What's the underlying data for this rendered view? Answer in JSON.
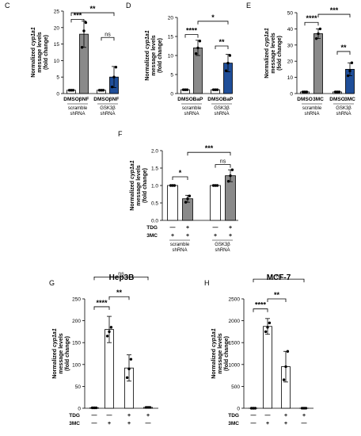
{
  "colors": {
    "open": "#ffffff",
    "gray": "#8a8a8a",
    "blue": "#1f4e99",
    "stroke": "#000000"
  },
  "chart_data": [
    {
      "panel": "C",
      "type": "bar",
      "title": "",
      "ylabel": [
        "Normalized cyp1a1",
        "message levels",
        "(fold change)"
      ],
      "yticks": [
        "0",
        "5",
        "10",
        "15",
        "20",
        "25"
      ],
      "ylim": [
        0,
        25
      ],
      "categories": [
        "DMSO",
        "βNF",
        "DMSO",
        "βNF"
      ],
      "groups": [
        "scramble shRNA",
        "GSK3β shRNA"
      ],
      "values": [
        1,
        18,
        1,
        5
      ],
      "errors": [
        0.1,
        4,
        0.1,
        3.2
      ],
      "points": [
        [
          1,
          1,
          1
        ],
        [
          14,
          19,
          21.5
        ],
        [
          1,
          1,
          1
        ],
        [
          2,
          5,
          8
        ]
      ],
      "fills": [
        "open",
        "gray",
        "open",
        "blue"
      ],
      "brackets": [
        {
          "from": 0,
          "to": 1,
          "y": 22.5,
          "label": "***"
        },
        {
          "from": 0,
          "to": 3,
          "y": 24.5,
          "label": "**"
        },
        {
          "from": 2,
          "to": 3,
          "y": 17,
          "label": "ns"
        }
      ]
    },
    {
      "panel": "D",
      "type": "bar",
      "title": "",
      "ylabel": [
        "Normalized cyp1a1",
        "message levels",
        "(fold change)"
      ],
      "yticks": [
        "0",
        "5",
        "10",
        "15",
        "20"
      ],
      "ylim": [
        0,
        20
      ],
      "categories": [
        "DMSO",
        "BaP",
        "DMSO",
        "BaP"
      ],
      "groups": [
        "scramble shRNA",
        "GSK3β shRNA"
      ],
      "values": [
        1,
        12,
        1,
        8
      ],
      "errors": [
        0.1,
        2,
        0.1,
        2.3
      ],
      "points": [
        [
          1,
          1,
          1
        ],
        [
          10.5,
          12,
          13.8
        ],
        [
          1,
          1,
          1
        ],
        [
          6,
          8,
          10
        ]
      ],
      "fills": [
        "open",
        "gray",
        "open",
        "blue"
      ],
      "brackets": [
        {
          "from": 0,
          "to": 1,
          "y": 15.5,
          "label": "****"
        },
        {
          "from": 1,
          "to": 3,
          "y": 19,
          "label": "*"
        },
        {
          "from": 2,
          "to": 3,
          "y": 12.5,
          "label": "**"
        }
      ]
    },
    {
      "panel": "E",
      "type": "bar",
      "title": "",
      "ylabel": [
        "Normalized cyp1a1",
        "message levels",
        "(fold change)"
      ],
      "yticks": [
        "0",
        "10",
        "20",
        "30",
        "40",
        "50"
      ],
      "ylim": [
        0,
        50
      ],
      "categories": [
        "DMSO",
        "3MC",
        "DMSO",
        "3MC"
      ],
      "groups": [
        "scramble shRNA",
        "GSK3β shRNA"
      ],
      "values": [
        1,
        37,
        1,
        15
      ],
      "errors": [
        0.2,
        3,
        0.2,
        4
      ],
      "points": [
        [
          1,
          1,
          1
        ],
        [
          34,
          37,
          40
        ],
        [
          1,
          1,
          1
        ],
        [
          11,
          14,
          19
        ]
      ],
      "fills": [
        "open",
        "gray",
        "open",
        "blue"
      ],
      "brackets": [
        {
          "from": 0,
          "to": 1,
          "y": 44,
          "label": "****"
        },
        {
          "from": 1,
          "to": 3,
          "y": 49,
          "label": "***"
        },
        {
          "from": 2,
          "to": 3,
          "y": 26,
          "label": "**"
        }
      ]
    },
    {
      "panel": "F",
      "type": "bar",
      "title": "",
      "ylabel": [
        "Normalized cyp1a1",
        "message levels",
        "(fold change)"
      ],
      "yticks": [
        "0.0",
        "0.5",
        "1.0",
        "1.5",
        "2.0"
      ],
      "ylim": [
        0,
        2
      ],
      "categories": [
        "",
        "",
        "",
        ""
      ],
      "groups": [
        "scramble shRNA",
        "GSK3β shRNA"
      ],
      "rows": [
        {
          "label": "TDG",
          "marks": [
            "—",
            "+",
            "—",
            "+"
          ]
        },
        {
          "label": "3MC",
          "marks": [
            "+",
            "+",
            "+",
            "+"
          ]
        }
      ],
      "values": [
        1,
        0.62,
        1,
        1.28
      ],
      "errors": [
        0.01,
        0.1,
        0.01,
        0.17
      ],
      "points": [
        [
          1,
          1,
          1
        ],
        [
          0.52,
          0.62,
          0.7
        ],
        [
          1,
          1,
          1
        ],
        [
          1.12,
          1.28,
          1.45
        ]
      ],
      "fills": [
        "open",
        "gray",
        "open",
        "gray"
      ],
      "brackets": [
        {
          "from": 0,
          "to": 1,
          "y": 1.25,
          "label": "*"
        },
        {
          "from": 1,
          "to": 3,
          "y": 1.95,
          "label": "***"
        },
        {
          "from": 2,
          "to": 3,
          "y": 1.6,
          "label": "ns"
        }
      ]
    },
    {
      "panel": "G",
      "type": "bar",
      "title": "Hep3B",
      "ylabel": [
        "Normalized cyp1a1",
        "message levels",
        "(fold change)"
      ],
      "yticks": [
        "0",
        "50",
        "100",
        "150",
        "200",
        "250"
      ],
      "ylim": [
        0,
        250
      ],
      "categories": [
        "",
        "",
        "",
        ""
      ],
      "rows": [
        {
          "label": "TDG",
          "marks": [
            "—",
            "—",
            "+",
            "+"
          ]
        },
        {
          "label": "3MC",
          "marks": [
            "—",
            "+",
            "+",
            "—"
          ]
        }
      ],
      "values": [
        1,
        180,
        92,
        2
      ],
      "errors": [
        0.5,
        30,
        30,
        0.5
      ],
      "points": [
        [
          1,
          1,
          1
        ],
        [
          165,
          175,
          185
        ],
        [
          70,
          90,
          112
        ],
        [
          2,
          2,
          2
        ]
      ],
      "fills": [
        "open",
        "open",
        "open",
        "open"
      ],
      "brackets": [
        {
          "from": 0,
          "to": 1,
          "y": 232,
          "label": "****"
        },
        {
          "from": 1,
          "to": 2,
          "y": 255,
          "label": "**"
        },
        {
          "from": 0,
          "to": 3,
          "y": 300,
          "label": "ns"
        }
      ]
    },
    {
      "panel": "H",
      "type": "bar",
      "title": "MCF-7",
      "ylabel": [
        "Normalized cyp1a1",
        "message levels",
        "(fold change)"
      ],
      "yticks": [
        "0",
        "500",
        "1000",
        "1500",
        "2000",
        "2500"
      ],
      "ylim": [
        0,
        2500
      ],
      "categories": [
        "",
        "",
        "",
        ""
      ],
      "rows": [
        {
          "label": "TDG",
          "marks": [
            "—",
            "—",
            "+",
            "+"
          ]
        },
        {
          "label": "3MC",
          "marks": [
            "—",
            "+",
            "+",
            "—"
          ]
        }
      ],
      "values": [
        1,
        1870,
        950,
        2
      ],
      "errors": [
        1,
        180,
        350,
        1
      ],
      "points": [
        [
          1,
          1,
          1
        ],
        [
          1750,
          1850,
          1950
        ],
        [
          650,
          950,
          1300
        ],
        [
          2,
          2,
          2
        ]
      ],
      "fills": [
        "open",
        "open",
        "open",
        "open"
      ],
      "brackets": [
        {
          "from": 0,
          "to": 1,
          "y": 2270,
          "label": "****"
        },
        {
          "from": 1,
          "to": 2,
          "y": 2500,
          "label": "**"
        },
        {
          "from": 0,
          "to": 3,
          "y": 2950,
          "label": "ns"
        }
      ]
    }
  ]
}
